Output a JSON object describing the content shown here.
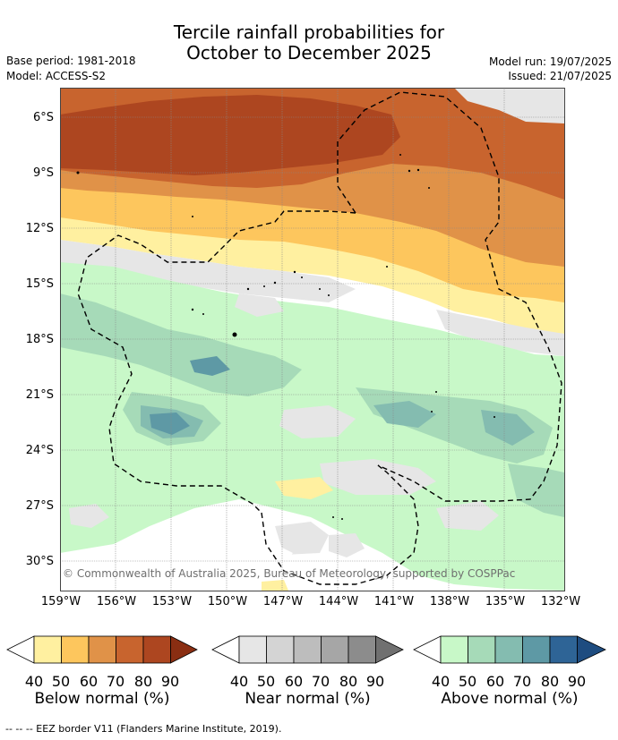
{
  "title": {
    "line1": "Tercile rainfall probabilities for",
    "line2": "October to December 2025"
  },
  "meta": {
    "base_period": "Base period: 1981-2018",
    "model": "Model: ACCESS-S2",
    "model_run": "Model run: 19/07/2025",
    "issued": "Issued: 21/07/2025"
  },
  "map": {
    "lat_labels": [
      "6°S",
      "9°S",
      "12°S",
      "15°S",
      "18°S",
      "21°S",
      "24°S",
      "27°S",
      "30°S"
    ],
    "lon_labels": [
      "159°W",
      "156°W",
      "153°W",
      "150°W",
      "147°W",
      "144°W",
      "141°W",
      "138°W",
      "135°W",
      "132°W"
    ],
    "copyright": "© Commonwealth of Australia 2025, Bureau of Meteorology, supported by COSPPac",
    "colors": {
      "below": [
        "#fff0a0",
        "#fdc65d",
        "#e09248",
        "#c8642e",
        "#ad4620",
        "#8a2e12"
      ],
      "near": [
        "#ffffff",
        "#e6e6e6",
        "#d4d4d4",
        "#bdbdbd",
        "#a6a6a6",
        "#8c8c8c"
      ],
      "above": [
        "#ffffff",
        "#c8f8c8",
        "#a6dab8",
        "#84bcb0",
        "#5e99a5",
        "#2e6496",
        "#1e4c80"
      ]
    }
  },
  "colorbars": {
    "ticks": [
      "40",
      "50",
      "60",
      "70",
      "80",
      "90"
    ],
    "below_title": "Below normal (%)",
    "near_title": "Near normal (%)",
    "above_title": "Above normal (%)"
  },
  "footnote": "--  --  -- EEZ border V11 (Flanders Marine Institute, 2019)."
}
